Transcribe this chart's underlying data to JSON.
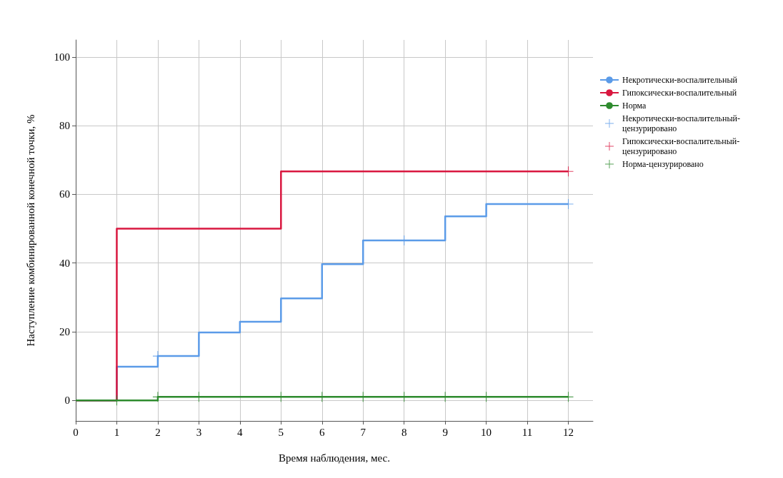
{
  "chart_data": {
    "type": "step",
    "xlabel": "Время наблюдения, мес.",
    "ylabel": "Наступление комбинированной конечной точки, %",
    "xlim": [
      0,
      12.6
    ],
    "xticks": [
      0,
      1,
      2,
      3,
      4,
      5,
      6,
      7,
      8,
      9,
      10,
      11,
      12
    ],
    "ylim": [
      -6,
      105
    ],
    "yticks": [
      0,
      20,
      40,
      60,
      80,
      100
    ],
    "grid": true,
    "legend": "right",
    "series": [
      {
        "name": "Некротически-воспалительный",
        "color": "#5b9be8",
        "x": [
          0,
          1,
          2,
          3,
          4,
          5,
          6,
          7,
          9,
          10,
          12
        ],
        "values": [
          0,
          9.8,
          12.9,
          19.8,
          22.9,
          29.7,
          39.7,
          46.6,
          53.6,
          57.2,
          57.2
        ]
      },
      {
        "name": "Гипоксически-воспалительный",
        "color": "#d9173f",
        "x": [
          0,
          1,
          5,
          12
        ],
        "values": [
          0,
          50,
          66.7,
          66.7
        ]
      },
      {
        "name": "Норма",
        "color": "#2e8b2e",
        "x": [
          0,
          2,
          12
        ],
        "values": [
          0,
          1,
          1
        ]
      },
      {
        "name": "Некротически-воспалительный-цензурировано",
        "type": "scatter",
        "marker": "cross",
        "color": "#5b9be8",
        "x": [
          2,
          8,
          12
        ],
        "values": [
          12.9,
          46.6,
          57.2
        ]
      },
      {
        "name": "Гипоксически-воспалительный-цензурировано",
        "type": "scatter",
        "marker": "cross",
        "color": "#d9173f",
        "x": [
          12
        ],
        "values": [
          66.7
        ]
      },
      {
        "name": "Норма-цензурировано",
        "type": "scatter",
        "marker": "cross",
        "color": "#2e8b2e",
        "x": [
          1,
          2,
          3,
          5,
          6,
          7,
          8,
          9,
          10,
          12
        ],
        "values": [
          0,
          1,
          1,
          1,
          1,
          1,
          1,
          1,
          1,
          1
        ]
      }
    ]
  }
}
